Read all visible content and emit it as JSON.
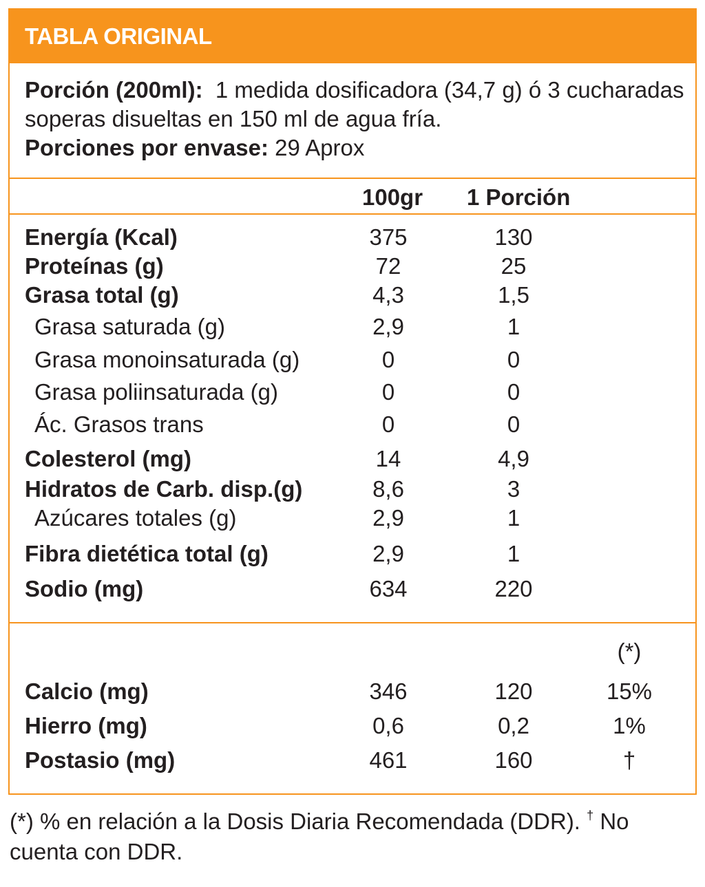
{
  "header": {
    "title": "TABLA ORIGINAL"
  },
  "serving": {
    "portion_label": "Porción (200ml):",
    "portion_text": "1 medida dosificadora (34,7 g) ó 3 cucharadas soperas disueltas en 150 ml de agua fría.",
    "per_container_label": "Porciones por envase:",
    "per_container_value": "29 Aprox"
  },
  "columns": {
    "per100": "100gr",
    "per_portion": "1 Porción",
    "ddr": "(*)"
  },
  "nutrients": [
    {
      "label": "Energía (Kcal)",
      "per100": "375",
      "portion": "130"
    },
    {
      "label": "Proteínas (g)",
      "per100": "72",
      "portion": "25"
    },
    {
      "label": "Grasa total (g)",
      "per100": "4,3",
      "portion": "1,5"
    },
    {
      "label": "Grasa saturada (g)",
      "per100": "2,9",
      "portion": "1"
    },
    {
      "label": "Grasa monoinsaturada (g)",
      "per100": "0",
      "portion": "0"
    },
    {
      "label": "Grasa poliinsaturada (g)",
      "per100": "0",
      "portion": "0"
    },
    {
      "label": "Ác. Grasos trans",
      "per100": "0",
      "portion": "0"
    },
    {
      "label": "Colesterol (mg)",
      "per100": "14",
      "portion": "4,9"
    },
    {
      "label": "Hidratos de Carb. disp.(g)",
      "per100": "8,6",
      "portion": "3"
    },
    {
      "label": "Azúcares totales (g)",
      "per100": "2,9",
      "portion": "1"
    },
    {
      "label": "Fibra dietética total (g)",
      "per100": "2,9",
      "portion": "1"
    },
    {
      "label": "Sodio (mg)",
      "per100": "634",
      "portion": "220"
    }
  ],
  "minerals": [
    {
      "label": "Calcio (mg)",
      "per100": "346",
      "portion": "120",
      "ddr": "15%"
    },
    {
      "label": "Hierro (mg)",
      "per100": "0,6",
      "portion": "0,2",
      "ddr": "1%"
    },
    {
      "label": "Postasio (mg)",
      "per100": "461",
      "portion": "160",
      "ddr": "†"
    }
  ],
  "footnote": {
    "text_a": "(*) % en relación a la Dosis Diaria Recomendada (DDR).",
    "dagger": "†",
    "text_b": " No cuenta con DDR."
  },
  "colors": {
    "accent": "#f7941d",
    "text": "#231f20"
  }
}
